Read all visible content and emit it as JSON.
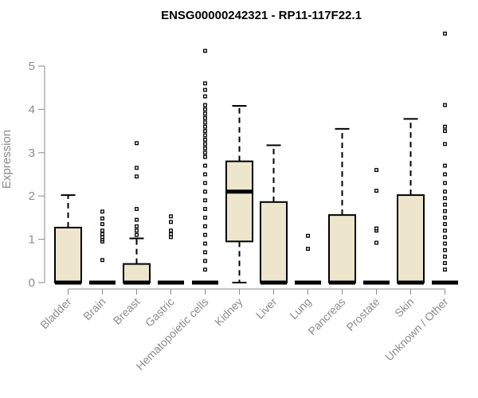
{
  "chart_data": {
    "type": "boxplot",
    "title": "ENSG00000242321 - RP11-117F22.1",
    "ylabel": "Expression",
    "xlabel": "",
    "ylim": [
      0,
      5.8
    ],
    "yticks": [
      0,
      1,
      2,
      3,
      4,
      5
    ],
    "grid": false,
    "box_fill": "#ede6cc",
    "categories": [
      "Bladder",
      "Brain",
      "Breast",
      "Gastric",
      "Hematopoietic cells",
      "Kidney",
      "Liver",
      "Lung",
      "Pancreas",
      "Prostate",
      "Skin",
      "Unknown / Other"
    ],
    "boxes": [
      {
        "min": 0,
        "q1": 0,
        "median": 0,
        "q3": 1.27,
        "max": 2.02,
        "outliers": []
      },
      {
        "min": 0,
        "q1": 0,
        "median": 0,
        "q3": 0,
        "max": 0,
        "outliers": [
          0.52,
          0.95,
          1.0,
          1.05,
          1.12,
          1.2,
          1.35,
          1.48,
          1.64
        ]
      },
      {
        "min": 0,
        "q1": 0,
        "median": 0,
        "q3": 0.43,
        "max": 1.02,
        "outliers": [
          1.1,
          1.2,
          1.3,
          1.45,
          1.7,
          2.45,
          2.65,
          3.22
        ]
      },
      {
        "min": 0,
        "q1": 0,
        "median": 0,
        "q3": 0,
        "max": 0,
        "outliers": [
          1.05,
          1.12,
          1.2,
          1.4,
          1.53
        ]
      },
      {
        "min": 0,
        "q1": 0,
        "median": 0,
        "q3": 0,
        "max": 0,
        "outliers": [
          0.3,
          0.5,
          0.7,
          0.9,
          1.1,
          1.3,
          1.5,
          1.7,
          1.9,
          2.1,
          2.3,
          2.5,
          2.7,
          2.9,
          3.0,
          3.1,
          3.2,
          3.3,
          3.4,
          3.5,
          3.6,
          3.7,
          3.8,
          3.9,
          4.0,
          4.1,
          4.3,
          4.45,
          4.6,
          5.35
        ]
      },
      {
        "min": 0,
        "q1": 0.95,
        "median": 2.1,
        "q3": 2.8,
        "max": 4.08,
        "outliers": []
      },
      {
        "min": 0,
        "q1": 0,
        "median": 0,
        "q3": 1.86,
        "max": 3.17,
        "outliers": []
      },
      {
        "min": 0,
        "q1": 0,
        "median": 0,
        "q3": 0,
        "max": 0,
        "outliers": [
          0.78,
          1.08
        ]
      },
      {
        "min": 0,
        "q1": 0,
        "median": 0,
        "q3": 1.56,
        "max": 3.55,
        "outliers": []
      },
      {
        "min": 0,
        "q1": 0,
        "median": 0,
        "q3": 0,
        "max": 0,
        "outliers": [
          0.92,
          1.2,
          1.25,
          2.12,
          2.6
        ]
      },
      {
        "min": 0,
        "q1": 0,
        "median": 0,
        "q3": 2.02,
        "max": 3.78,
        "outliers": []
      },
      {
        "min": 0,
        "q1": 0,
        "median": 0,
        "q3": 0,
        "max": 0,
        "outliers": [
          0.3,
          0.45,
          0.6,
          0.75,
          0.9,
          1.05,
          1.2,
          1.35,
          1.5,
          1.65,
          1.8,
          1.95,
          2.1,
          2.3,
          2.5,
          2.7,
          3.2,
          3.5,
          3.6,
          4.1,
          5.75
        ]
      }
    ]
  }
}
